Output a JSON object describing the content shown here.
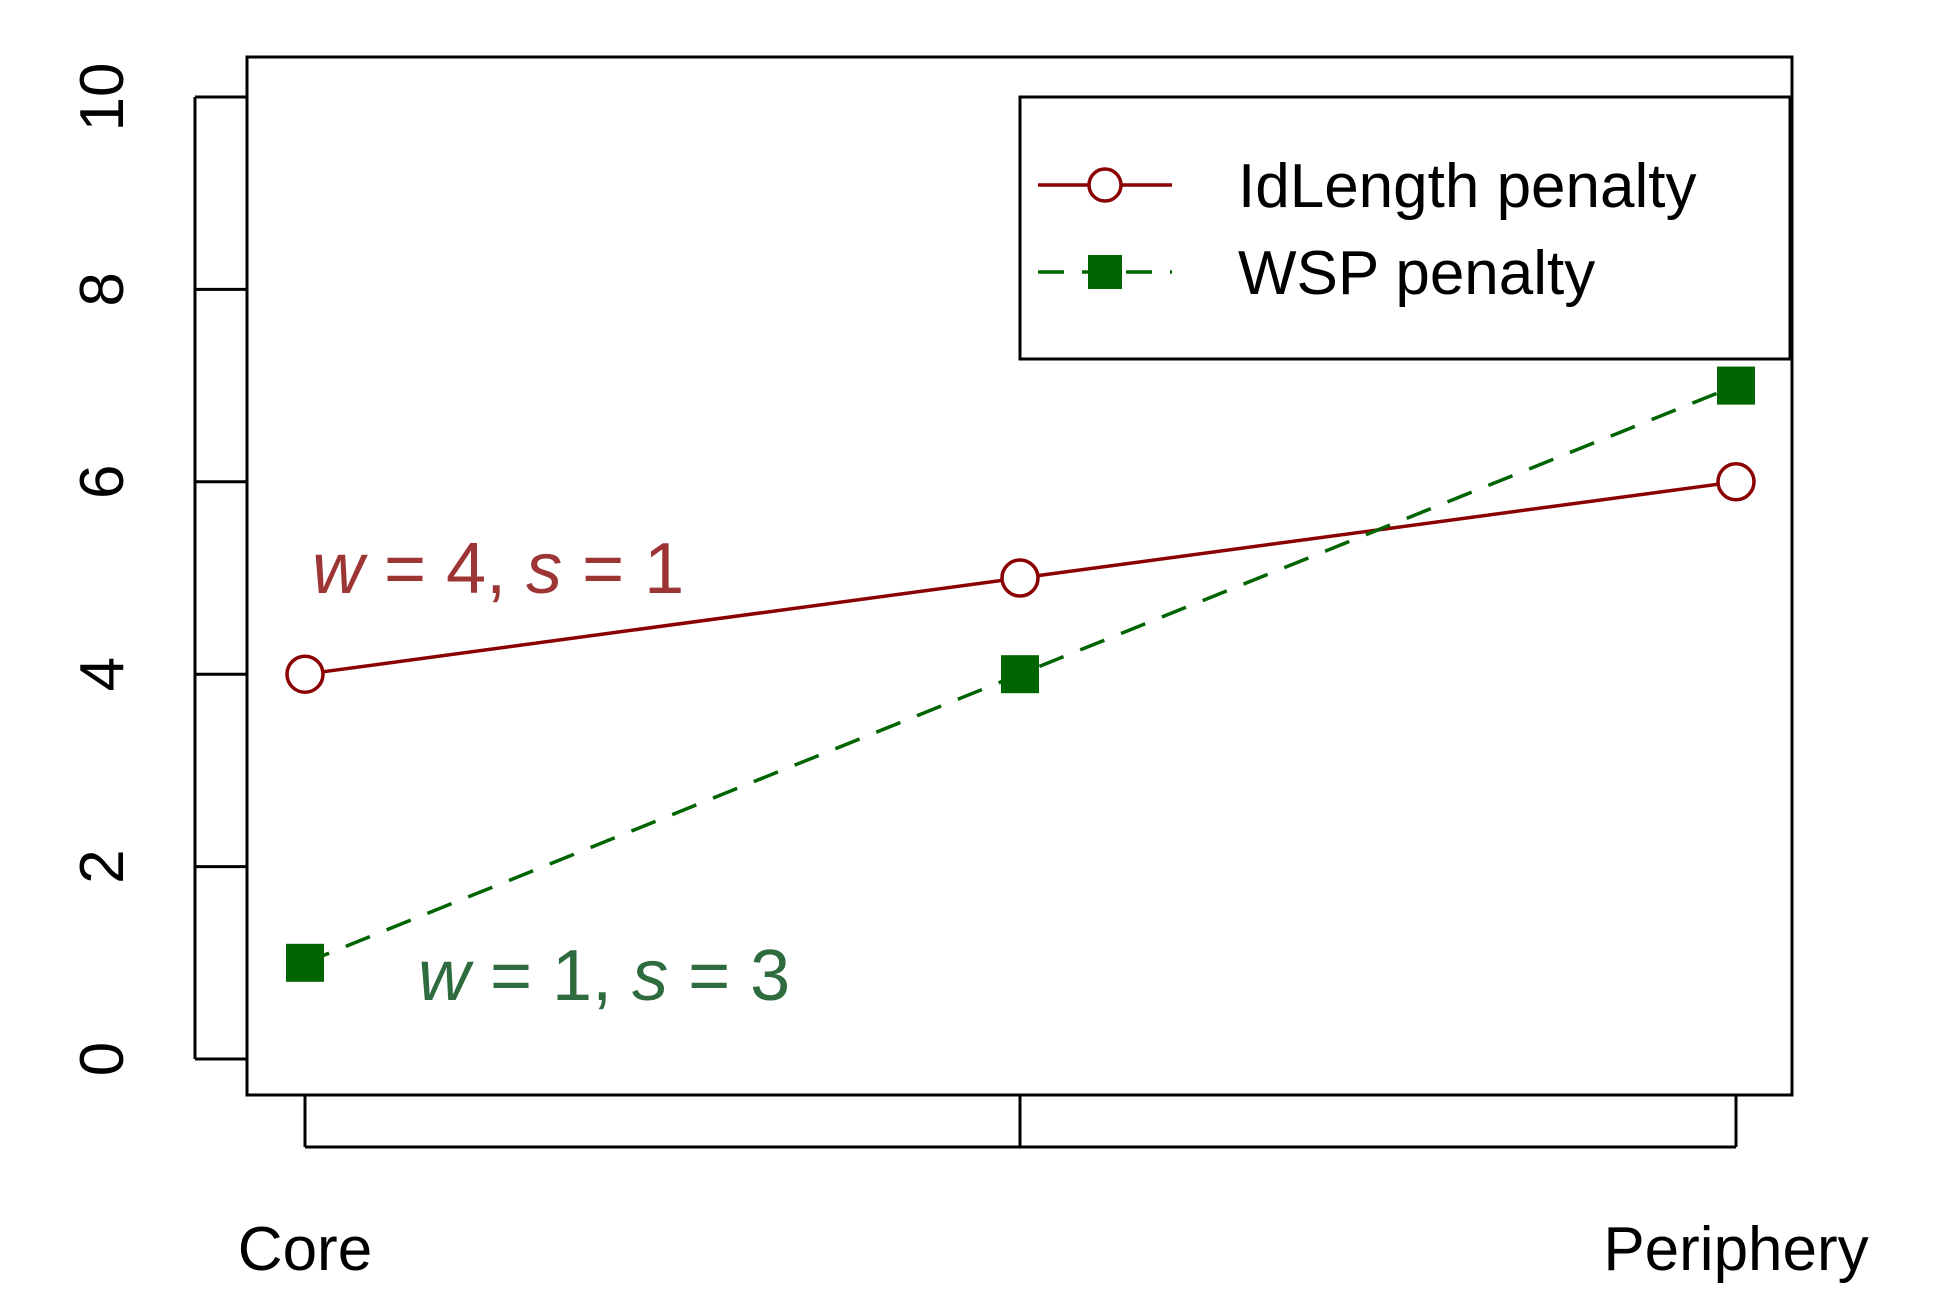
{
  "chart_data": {
    "type": "line",
    "categories": [
      "Core",
      "",
      "Periphery"
    ],
    "x_tick_labels": [
      "Core",
      "Periphery"
    ],
    "ylim": [
      0,
      10
    ],
    "y_ticks": [
      "0",
      "2",
      "4",
      "6",
      "8",
      "10"
    ],
    "grid": false,
    "legend_position": "top-right",
    "series": [
      {
        "name": "IdLength penalty",
        "values": [
          4,
          5,
          6
        ],
        "color": "#8B0000",
        "line": "solid",
        "marker": "open-circle"
      },
      {
        "name": "WSP penalty",
        "values": [
          1,
          4,
          7
        ],
        "color": "#006400",
        "line": "dashed",
        "marker": "filled-square"
      }
    ],
    "annotations": [
      {
        "w_label": "w",
        "w_rest": " = 4, ",
        "s_label": "s",
        "s_rest": " = 1",
        "color": "#9E3535"
      },
      {
        "w_label": "w",
        "w_rest": " = 1, ",
        "s_label": "s",
        "s_rest": " = 3",
        "color": "#2E6B3E"
      }
    ]
  }
}
